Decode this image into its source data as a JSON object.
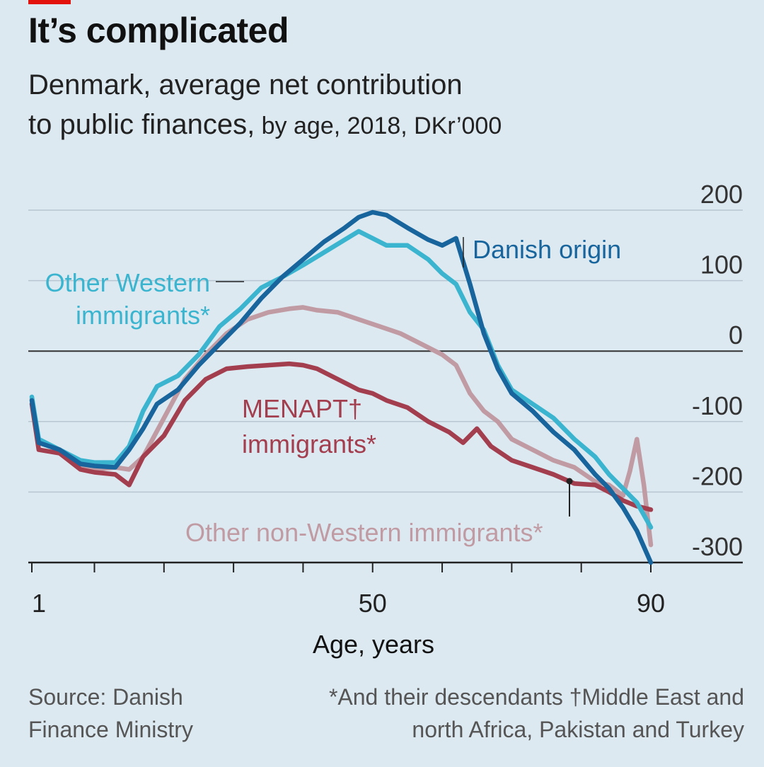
{
  "header": {
    "title": "It’s complicated",
    "subtitle_line1": "Denmark, average net contribution",
    "subtitle_line2a": "to public finances,",
    "subtitle_line2b": " by age, 2018, DKr’000"
  },
  "footer": {
    "source": "Source: Danish Finance Ministry",
    "footnote": "*And their descendants  †Middle East and north Africa, Pakistan and Turkey"
  },
  "colors": {
    "background": "#dde9f1",
    "danish": "#17659c",
    "other_western": "#3bb5cf",
    "menapt": "#a33e4f",
    "other_nonwestern": "#c09ba3",
    "gridline": "#b7c6d1",
    "zeroline": "#333333"
  },
  "chart_data": {
    "type": "line",
    "xlabel": "Age, years",
    "ylabel": "",
    "xlim": [
      1,
      90
    ],
    "ylim": [
      -300,
      200
    ],
    "x_ticks": [
      1,
      50,
      90
    ],
    "y_ticks": [
      200,
      100,
      0,
      -100,
      -200,
      -300
    ],
    "series": [
      {
        "name": "Danish origin",
        "color": "#17659c",
        "points": [
          [
            1,
            -70
          ],
          [
            2,
            -130
          ],
          [
            5,
            -140
          ],
          [
            8,
            -160
          ],
          [
            10,
            -163
          ],
          [
            13,
            -165
          ],
          [
            15,
            -140
          ],
          [
            17,
            -110
          ],
          [
            19,
            -75
          ],
          [
            22,
            -55
          ],
          [
            25,
            -20
          ],
          [
            28,
            10
          ],
          [
            31,
            40
          ],
          [
            34,
            75
          ],
          [
            37,
            105
          ],
          [
            40,
            130
          ],
          [
            43,
            155
          ],
          [
            46,
            175
          ],
          [
            48,
            190
          ],
          [
            50,
            197
          ],
          [
            52,
            193
          ],
          [
            55,
            175
          ],
          [
            58,
            158
          ],
          [
            60,
            150
          ],
          [
            62,
            160
          ],
          [
            64,
            95
          ],
          [
            66,
            25
          ],
          [
            68,
            -25
          ],
          [
            70,
            -60
          ],
          [
            73,
            -85
          ],
          [
            76,
            -115
          ],
          [
            79,
            -140
          ],
          [
            82,
            -175
          ],
          [
            84,
            -195
          ],
          [
            86,
            -222
          ],
          [
            88,
            -255
          ],
          [
            90,
            -300
          ]
        ]
      },
      {
        "name": "Other Western immigrants*",
        "color": "#3bb5cf",
        "points": [
          [
            1,
            -65
          ],
          [
            2,
            -125
          ],
          [
            5,
            -140
          ],
          [
            8,
            -155
          ],
          [
            10,
            -158
          ],
          [
            13,
            -158
          ],
          [
            15,
            -135
          ],
          [
            17,
            -85
          ],
          [
            19,
            -50
          ],
          [
            22,
            -35
          ],
          [
            25,
            -5
          ],
          [
            28,
            35
          ],
          [
            31,
            60
          ],
          [
            34,
            90
          ],
          [
            37,
            105
          ],
          [
            40,
            122
          ],
          [
            43,
            140
          ],
          [
            46,
            158
          ],
          [
            48,
            170
          ],
          [
            50,
            160
          ],
          [
            52,
            150
          ],
          [
            55,
            150
          ],
          [
            58,
            130
          ],
          [
            60,
            110
          ],
          [
            62,
            95
          ],
          [
            64,
            55
          ],
          [
            66,
            30
          ],
          [
            68,
            -20
          ],
          [
            70,
            -55
          ],
          [
            73,
            -75
          ],
          [
            76,
            -95
          ],
          [
            79,
            -125
          ],
          [
            82,
            -150
          ],
          [
            84,
            -175
          ],
          [
            86,
            -195
          ],
          [
            88,
            -215
          ],
          [
            90,
            -250
          ]
        ]
      },
      {
        "name": "MENAPT† immigrants*",
        "color": "#a33e4f",
        "points": [
          [
            1,
            -75
          ],
          [
            2,
            -140
          ],
          [
            5,
            -145
          ],
          [
            8,
            -168
          ],
          [
            10,
            -172
          ],
          [
            13,
            -175
          ],
          [
            15,
            -190
          ],
          [
            17,
            -150
          ],
          [
            20,
            -120
          ],
          [
            23,
            -70
          ],
          [
            26,
            -40
          ],
          [
            29,
            -25
          ],
          [
            32,
            -22
          ],
          [
            35,
            -20
          ],
          [
            38,
            -18
          ],
          [
            40,
            -20
          ],
          [
            42,
            -25
          ],
          [
            45,
            -40
          ],
          [
            48,
            -55
          ],
          [
            50,
            -60
          ],
          [
            52,
            -70
          ],
          [
            55,
            -80
          ],
          [
            58,
            -100
          ],
          [
            61,
            -115
          ],
          [
            63,
            -130
          ],
          [
            65,
            -110
          ],
          [
            67,
            -135
          ],
          [
            70,
            -155
          ],
          [
            73,
            -165
          ],
          [
            76,
            -175
          ],
          [
            79,
            -188
          ],
          [
            82,
            -190
          ],
          [
            84,
            -200
          ],
          [
            86,
            -212
          ],
          [
            88,
            -220
          ],
          [
            90,
            -225
          ]
        ]
      },
      {
        "name": "Other non-Western immigrants*",
        "color": "#c09ba3",
        "points": [
          [
            1,
            -68
          ],
          [
            2,
            -128
          ],
          [
            5,
            -140
          ],
          [
            8,
            -165
          ],
          [
            10,
            -168
          ],
          [
            13,
            -165
          ],
          [
            15,
            -168
          ],
          [
            17,
            -150
          ],
          [
            20,
            -95
          ],
          [
            23,
            -40
          ],
          [
            26,
            -5
          ],
          [
            29,
            25
          ],
          [
            32,
            45
          ],
          [
            35,
            55
          ],
          [
            38,
            60
          ],
          [
            40,
            62
          ],
          [
            42,
            58
          ],
          [
            45,
            55
          ],
          [
            48,
            45
          ],
          [
            51,
            35
          ],
          [
            54,
            25
          ],
          [
            57,
            10
          ],
          [
            60,
            -5
          ],
          [
            62,
            -20
          ],
          [
            64,
            -60
          ],
          [
            66,
            -85
          ],
          [
            68,
            -100
          ],
          [
            70,
            -125
          ],
          [
            73,
            -140
          ],
          [
            76,
            -155
          ],
          [
            79,
            -165
          ],
          [
            82,
            -185
          ],
          [
            84,
            -190
          ],
          [
            86,
            -205
          ],
          [
            87,
            -170
          ],
          [
            88,
            -125
          ],
          [
            89,
            -190
          ],
          [
            90,
            -275
          ]
        ]
      }
    ],
    "annotations": [
      {
        "text": "Danish origin",
        "series": "Danish origin"
      },
      {
        "text": "Other Western",
        "text2": "immigrants*",
        "series": "Other Western immigrants*"
      },
      {
        "text": "MENAPT†",
        "text2": "immigrants*",
        "series": "MENAPT† immigrants*"
      },
      {
        "text": "Other non-Western immigrants*",
        "series": "Other non-Western immigrants*"
      }
    ]
  }
}
